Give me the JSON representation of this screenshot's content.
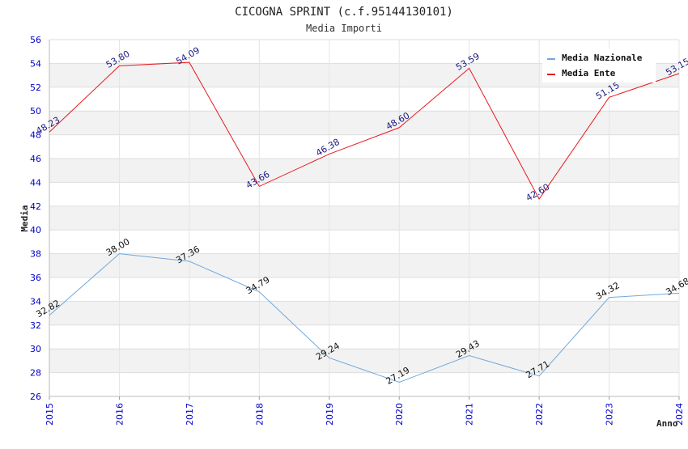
{
  "chart_data": {
    "type": "line",
    "title": "CICOGNA SPRINT (c.f.95144130101)",
    "subtitle": "Media Importi",
    "xlabel": "Anno",
    "ylabel": "Media",
    "ylim": [
      26,
      56
    ],
    "yticks": [
      26,
      28,
      30,
      32,
      34,
      36,
      38,
      40,
      42,
      44,
      46,
      48,
      50,
      52,
      54,
      56
    ],
    "categories": [
      "2015",
      "2016",
      "2017",
      "2018",
      "2019",
      "2020",
      "2021",
      "2022",
      "2023",
      "2024"
    ],
    "grid": true,
    "legend_position": "top-right",
    "series": [
      {
        "name": "Media Nazionale",
        "color": "#6fa8dc",
        "values": [
          32.82,
          38.0,
          37.36,
          34.79,
          29.24,
          27.19,
          29.43,
          27.71,
          34.32,
          34.68
        ],
        "labels": [
          "32.82",
          "38.00",
          "37.36",
          "34.79",
          "29.24",
          "27.19",
          "29.43",
          "27.71",
          "34.32",
          "34.68"
        ]
      },
      {
        "name": "Media Ente",
        "color": "#e8191f",
        "values": [
          48.23,
          53.8,
          54.09,
          43.66,
          46.38,
          48.6,
          53.59,
          42.6,
          51.15,
          53.15
        ],
        "labels": [
          "48.23",
          "53.80",
          "54.09",
          "43.66",
          "46.38",
          "48.60",
          "53.59",
          "42.60",
          "51.15",
          "53.15"
        ]
      }
    ]
  }
}
